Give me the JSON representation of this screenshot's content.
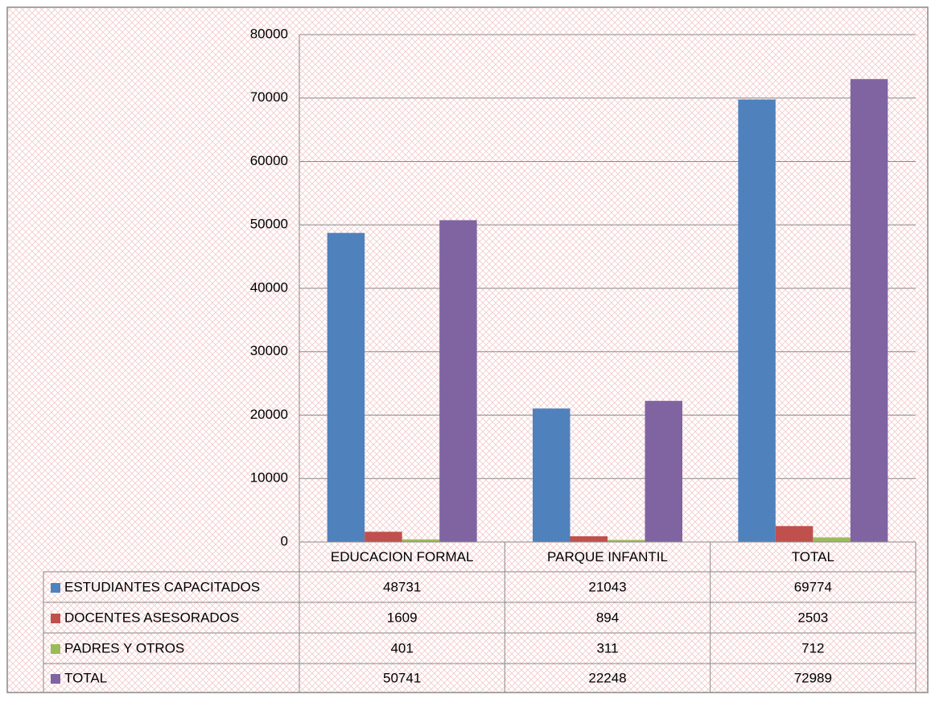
{
  "chart_data": {
    "type": "bar",
    "categories": [
      "EDUCACION FORMAL",
      "PARQUE INFANTIL",
      "TOTAL"
    ],
    "series": [
      {
        "name": "ESTUDIANTES  CAPACITADOS",
        "color": "#4f81bd",
        "values": [
          48731,
          21043,
          69774
        ]
      },
      {
        "name": "DOCENTES ASESORADOS",
        "color": "#c0504d",
        "values": [
          1609,
          894,
          2503
        ]
      },
      {
        "name": "PADRES Y OTROS",
        "color": "#9bbb59",
        "values": [
          401,
          311,
          712
        ]
      },
      {
        "name": "TOTAL",
        "color": "#8064a2",
        "values": [
          50741,
          22248,
          72989
        ]
      }
    ],
    "ylim": [
      0,
      80000
    ],
    "yticks": [
      0,
      10000,
      20000,
      30000,
      40000,
      50000,
      60000,
      70000,
      80000
    ],
    "grid": true,
    "data_table": true
  }
}
